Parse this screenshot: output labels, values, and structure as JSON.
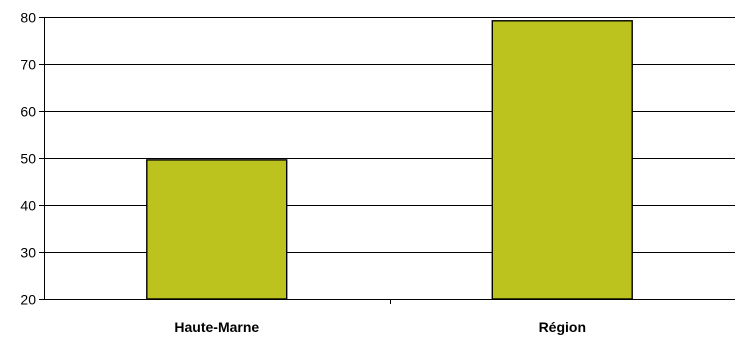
{
  "chart_data": {
    "type": "bar",
    "categories": [
      "Haute-Marne",
      "Région"
    ],
    "values": [
      49.6,
      79.2
    ],
    "ylim": [
      20,
      80
    ],
    "yticks": [
      20,
      30,
      40,
      50,
      60,
      70,
      80
    ],
    "grid": true,
    "bar_color": "#bcc31f",
    "title": "",
    "xlabel": "",
    "ylabel": ""
  }
}
